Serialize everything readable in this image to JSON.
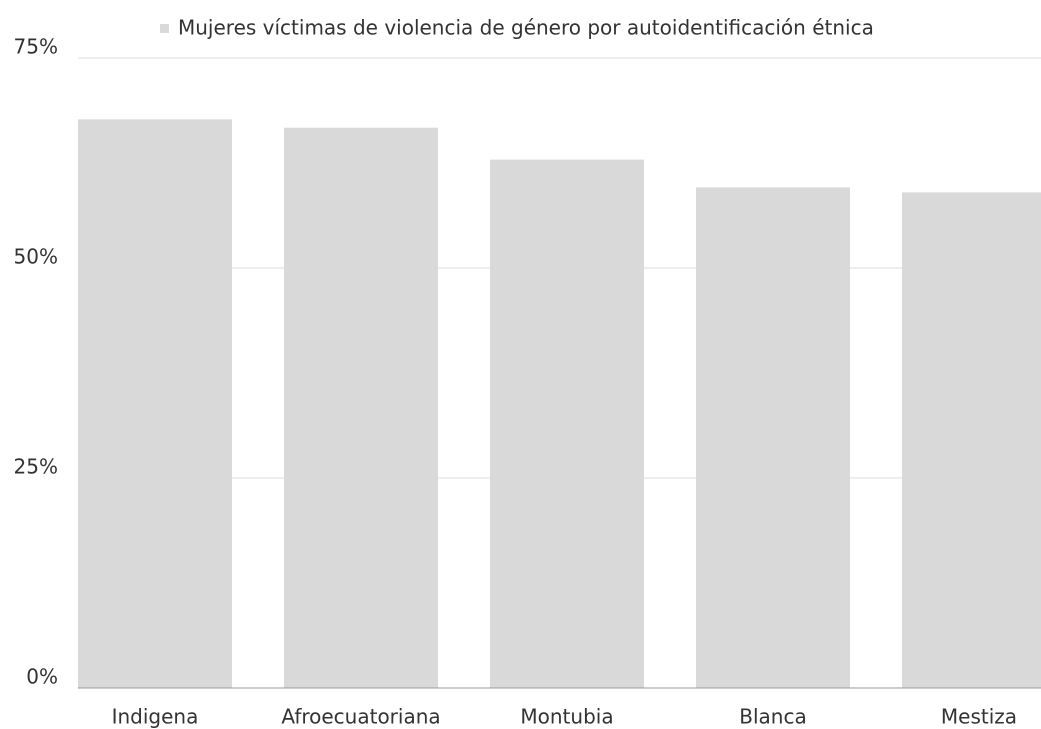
{
  "chart_data": {
    "type": "bar",
    "categories": [
      "Indigena",
      "Afroecuatoriana",
      "Montubia",
      "Blanca",
      "Mestiza"
    ],
    "series": [
      {
        "name": "Mujeres víctimas de violencia de género por autoidentificación étnica",
        "color": "#d9d9d9",
        "values": [
          67.7,
          66.7,
          62.9,
          59.6,
          59.0
        ]
      }
    ],
    "ylim": [
      0,
      75
    ],
    "yticks": [
      {
        "value": 0,
        "label": "0%"
      },
      {
        "value": 25,
        "label": "25%"
      },
      {
        "value": 50,
        "label": "50%"
      },
      {
        "value": 75,
        "label": "75%"
      }
    ],
    "grid": true,
    "legend": "top"
  }
}
